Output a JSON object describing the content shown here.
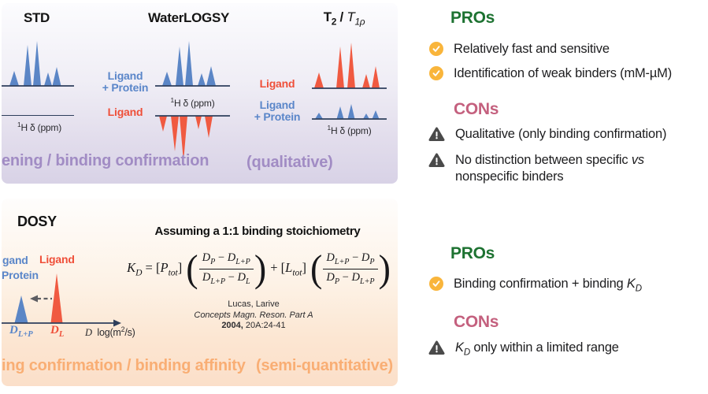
{
  "colors": {
    "blue-label": "#5a86c9",
    "red-label": "#ef4f39",
    "line": "#2e3f5c",
    "purple": "#a18cc4",
    "orange": "#f9ae74",
    "green": "#1d7231",
    "pink": "#c4607e",
    "amber": "#f9b53b",
    "warn-gray": "#4a4a4a",
    "peak-blue": "#5b86c6",
    "peak-red": "#f05a41"
  },
  "panel_ligand_observed": {
    "methods": {
      "std": {
        "title": "STD",
        "xaxis": "<sup>1</sup>H δ (ppm)"
      },
      "waterlogsy": {
        "title": "WaterLOGSY",
        "label_complex": "Ligand<br>+ Protein",
        "label_ligand": "Ligand",
        "xaxis": "<sup>1</sup>H δ (ppm)"
      },
      "t2": {
        "title": "T<sub>2</sub> / <i class=\"lw\">T<sub>1ρ</sub></i>",
        "label_ligand": "Ligand",
        "label_complex": "Ligand<br>+ Protein",
        "xaxis": "<sup>1</sup>H δ (ppm)"
      }
    },
    "footer_left": "ening / binding confirmation",
    "footer_right": "(qualitative)"
  },
  "panel_dosy": {
    "title": "DOSY",
    "subtitle": "Assuming a 1:1 binding stoichiometry",
    "label_complex_line1": "gand",
    "label_complex_line2": "Protein",
    "label_ligand": "Ligand",
    "d_complex": "D<sub>L+P</sub>",
    "d_ligand": "D<sub>L</sub>",
    "xaxis": "<i class=\"ser\">D</i>&nbsp; log(m<sup>2</sup>/s)",
    "formula": {
      "lhs": "<i>K<sub>D</sub></i> = [<i>P<sub>tot</sub></i>]",
      "f1_num": "<i>D<sub>P</sub></i> − <i>D<sub>L+P</sub></i>",
      "f1_den": "<i>D<sub>L+P</sub></i> − <i>D<sub>L</sub></i>",
      "mid": "+ [<i>L<sub>tot</sub></i>]",
      "f2_num": "<i>D<sub>L+P</sub></i> − <i>D<sub>P</sub></i>",
      "f2_den": "<i>D<sub>P</sub></i> − <i>D<sub>L+P</sub></i>",
      "open_paren": "(",
      "close_paren": ")"
    },
    "citation": {
      "line1": "Lucas, Larive",
      "line2": "<i>Concepts Magn. Reson. Part A</i>",
      "line3": "<b>2004,</b> 20A:24-41"
    },
    "footer_left": "ing confirmation / binding affinity",
    "footer_right": "(semi-quantitative)"
  },
  "pros_cons_top": {
    "pros_heading": "PROs",
    "pros": [
      "Relatively fast and sensitive",
      "Identification of weak binders (mM-µM)"
    ],
    "cons_heading": "CONs",
    "cons": [
      "Qualitative (only binding confirmation)",
      "No distinction between specific <i>vs</i> nonspecific binders"
    ]
  },
  "pros_cons_bottom": {
    "pros_heading": "PROs",
    "pros": [
      "Binding confirmation + binding <i>K<sub>D</sub></i>"
    ],
    "cons_heading": "CONs",
    "cons": [
      "<i>K<sub>D</sub></i> only within a limited range"
    ]
  },
  "spectra": {
    "std_main": {
      "w": 92,
      "h": 64,
      "baseline": 60,
      "peak_color": "#5b86c6",
      "axis_color": "#2e3f5c",
      "peaks": [
        [
          16,
          6,
          19
        ],
        [
          33,
          5,
          52
        ],
        [
          45,
          5,
          57
        ],
        [
          59,
          5,
          17
        ],
        [
          70,
          5.5,
          24
        ]
      ]
    },
    "wl_top": {
      "w": 95,
      "h": 64,
      "baseline": 60,
      "peak_color": "#5b86c6",
      "axis_color": "#2e3f5c",
      "peaks": [
        [
          15,
          6,
          18
        ],
        [
          31,
          5,
          50
        ],
        [
          43,
          5,
          57
        ],
        [
          59,
          5,
          16
        ],
        [
          71,
          6,
          25
        ]
      ]
    },
    "wl_bottom": {
      "w": 95,
      "h": 64,
      "baseline": 2,
      "peak_color": "#f05a41",
      "axis_color": "#2e3f5c",
      "peaks": [
        [
          10,
          5,
          -20
        ],
        [
          25,
          5,
          -45
        ],
        [
          36,
          5,
          -58
        ],
        [
          55,
          4,
          -17
        ],
        [
          68,
          5,
          -28
        ]
      ]
    },
    "t2_ligand": {
      "w": 95,
      "h": 66,
      "baseline": 62,
      "peak_color": "#f05a41",
      "axis_color": "#2e3f5c",
      "peaks": [
        [
          9,
          6,
          20
        ],
        [
          36,
          5,
          53
        ],
        [
          50,
          5,
          58
        ],
        [
          69,
          5,
          18
        ],
        [
          81,
          5,
          28
        ]
      ]
    },
    "t2_complex": {
      "w": 95,
      "h": 24,
      "baseline": 22,
      "peak_color": "#5b86c6",
      "axis_color": "#2e3f5c",
      "peaks": [
        [
          9,
          5,
          8
        ],
        [
          36,
          4.5,
          16
        ],
        [
          50,
          4.5,
          19
        ],
        [
          69,
          4,
          7
        ],
        [
          81,
          4.5,
          11
        ]
      ]
    },
    "dosy": {
      "w": 152,
      "h": 78,
      "baseline": 72,
      "peak_color": "#5b86c6",
      "axis_color": "#2e3f5c",
      "arrow": true,
      "peaks": [
        [
          25,
          8.5,
          35,
          "#5b86c6"
        ],
        [
          70,
          7.5,
          63,
          "#f05a41"
        ]
      ]
    }
  }
}
